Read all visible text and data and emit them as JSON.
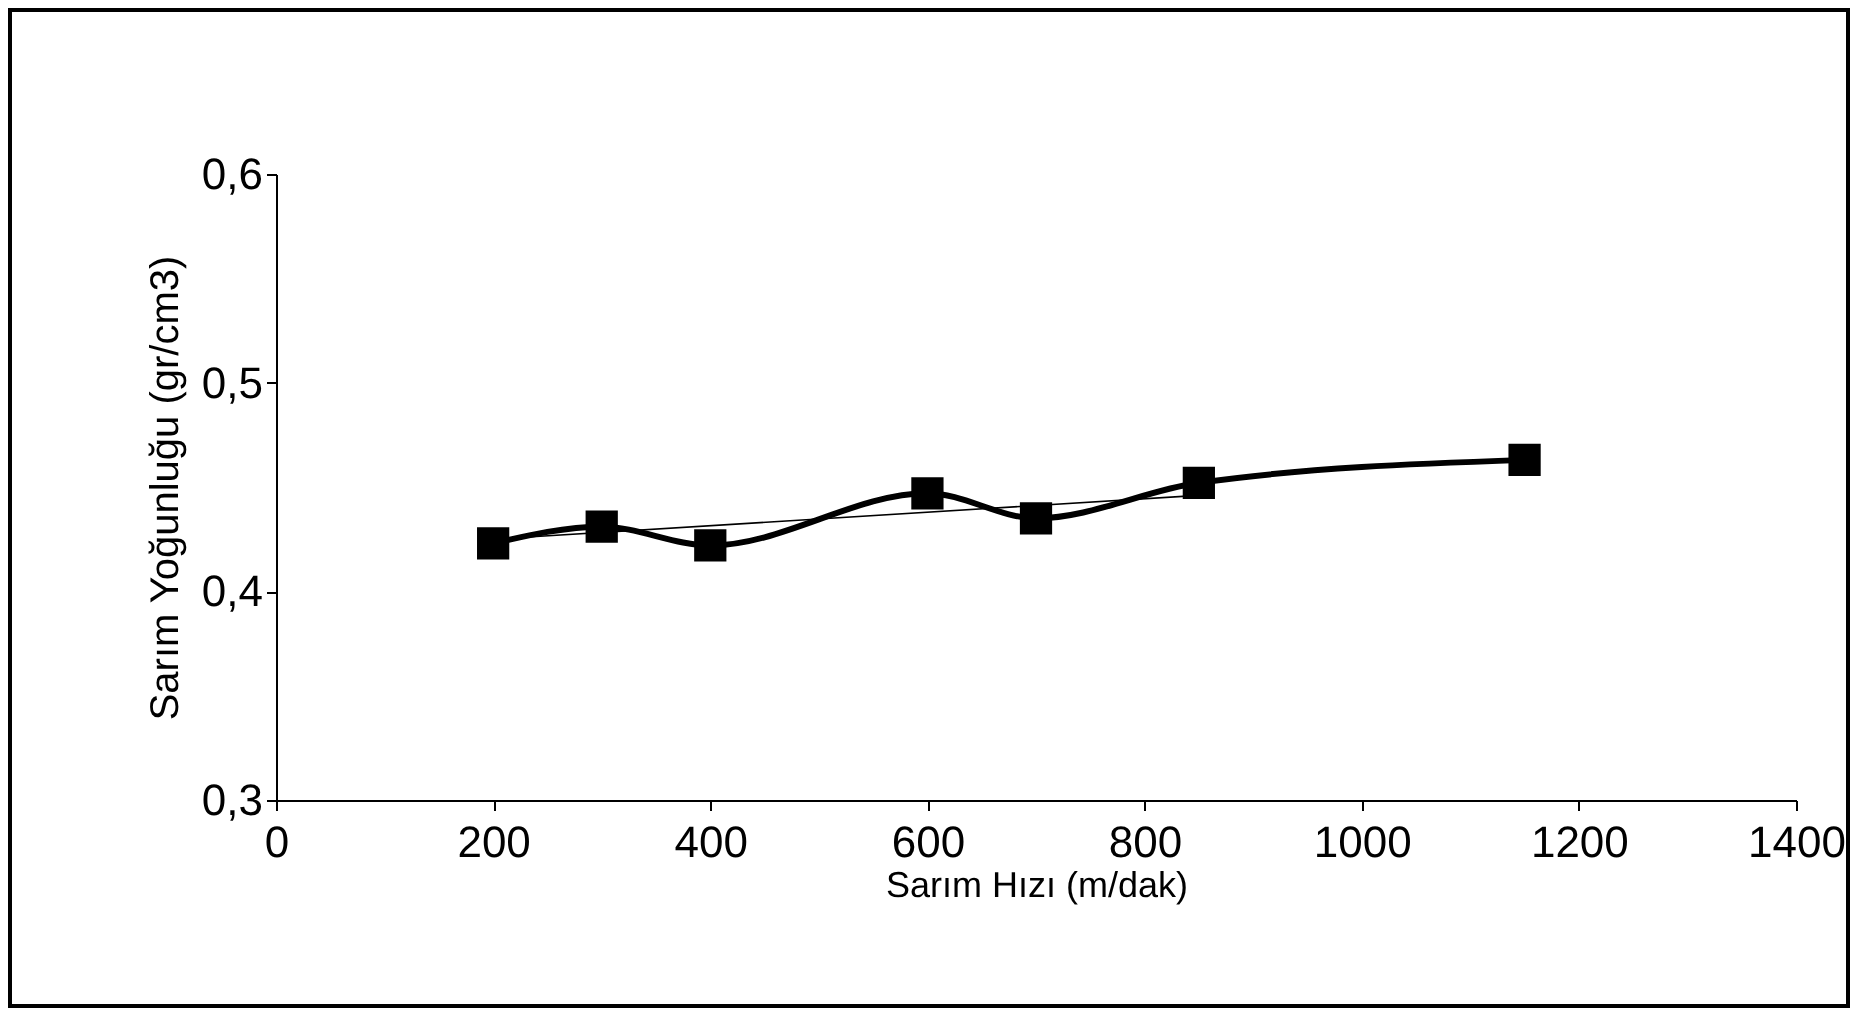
{
  "chart_data": {
    "type": "line",
    "xlabel": "Sarım Hızı (m/dak)",
    "ylabel": "Sarım Yoğunluğu (gr/cm3)",
    "x": [
      200,
      300,
      400,
      600,
      700,
      850,
      1150
    ],
    "series": [
      {
        "color": "#000000",
        "values": [
          0.423,
          0.431,
          0.422,
          0.447,
          0.435,
          0.452,
          0.463
        ]
      },
      {
        "type": "line",
        "color": "#000000",
        "x": [
          200,
          850
        ],
        "values": [
          0.425,
          0.446
        ],
        "marker": "none"
      }
    ],
    "marker": "square",
    "line_style": "solid",
    "grid": false,
    "xlim": [
      0,
      1400
    ],
    "xticks": [
      0,
      200,
      400,
      600,
      800,
      1000,
      1200,
      1400
    ],
    "ylim": [
      0.3,
      0.6
    ],
    "yticks": [
      {
        "value": 0.3,
        "label": "0,3"
      },
      {
        "value": 0.4,
        "label": "0,4"
      },
      {
        "value": 0.5,
        "label": "0,5"
      },
      {
        "value": 0.6,
        "label": "0,6"
      }
    ]
  }
}
